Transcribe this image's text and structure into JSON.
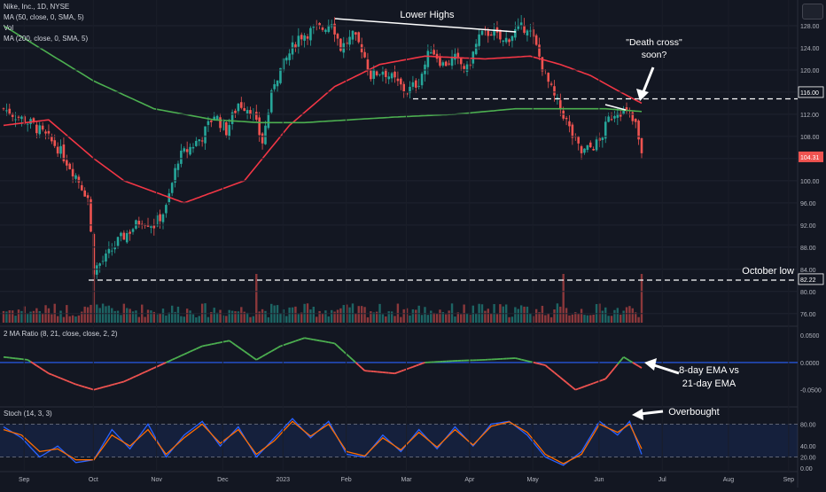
{
  "header": {
    "symbol_line": "Nike, Inc., 1D, NYSE",
    "ma50_label": "MA (50, close, 0, SMA, 5)",
    "vol_label": "Vol",
    "ma200_label": "MA (200, close, 0, SMA, 5)"
  },
  "panes": {
    "ratio_label": "2 MA Ratio (8, 21, close, close, 2, 2)",
    "stoch_label": "Stoch (14, 3, 3)"
  },
  "colors": {
    "background": "#131722",
    "up": "#26a69a",
    "down": "#ef5350",
    "ma50": "#f23645",
    "ma200": "#4caf50",
    "ratio_line": "#2962ff",
    "stoch_k": "#2962ff",
    "stoch_d": "#ff6d00"
  },
  "annotations": {
    "lower_highs": "Lower Highs",
    "death_cross": [
      "\"Death cross\"",
      "soon?"
    ],
    "october_low": "October low",
    "ema_note": [
      "8-day EMA vs",
      "21-day EMA"
    ],
    "overbought": "Overbought"
  },
  "chart_data": [
    {
      "type": "candlestick",
      "title": "Nike, Inc., 1D, NYSE",
      "x_tick_labels": [
        "Sep",
        "Oct",
        "Nov",
        "Dec",
        "2023",
        "Feb",
        "Mar",
        "Apr",
        "May",
        "Jun",
        "Jul",
        "Aug",
        "Sep"
      ],
      "y_tick_labels": [
        "128.00",
        "124.00",
        "120.00",
        "116.00",
        "112.00",
        "108.00",
        "104.00",
        "100.00",
        "96.00",
        "92.00",
        "88.00",
        "84.00",
        "80.00",
        "76.00"
      ],
      "ylim": [
        75,
        132
      ],
      "last_price": "104.31",
      "level_labels": [
        "116.00",
        "82.22"
      ],
      "close_anchors": [
        {
          "x": 0,
          "y": 113
        },
        {
          "x": 10,
          "y": 110
        },
        {
          "x": 18,
          "y": 106
        },
        {
          "x": 24,
          "y": 101
        },
        {
          "x": 28,
          "y": 97
        },
        {
          "x": 30,
          "y": 84
        },
        {
          "x": 34,
          "y": 86
        },
        {
          "x": 38,
          "y": 89
        },
        {
          "x": 42,
          "y": 91
        },
        {
          "x": 46,
          "y": 93
        },
        {
          "x": 50,
          "y": 92
        },
        {
          "x": 54,
          "y": 95
        },
        {
          "x": 58,
          "y": 104
        },
        {
          "x": 62,
          "y": 106
        },
        {
          "x": 66,
          "y": 108
        },
        {
          "x": 70,
          "y": 112
        },
        {
          "x": 74,
          "y": 109
        },
        {
          "x": 78,
          "y": 114
        },
        {
          "x": 82,
          "y": 113
        },
        {
          "x": 86,
          "y": 107
        },
        {
          "x": 90,
          "y": 118
        },
        {
          "x": 94,
          "y": 122
        },
        {
          "x": 98,
          "y": 126
        },
        {
          "x": 102,
          "y": 127
        },
        {
          "x": 106,
          "y": 127.5
        },
        {
          "x": 109,
          "y": 129
        },
        {
          "x": 112,
          "y": 124
        },
        {
          "x": 116,
          "y": 126
        },
        {
          "x": 119,
          "y": 124
        },
        {
          "x": 122,
          "y": 119
        },
        {
          "x": 126,
          "y": 120
        },
        {
          "x": 130,
          "y": 118
        },
        {
          "x": 134,
          "y": 116
        },
        {
          "x": 138,
          "y": 118
        },
        {
          "x": 142,
          "y": 124
        },
        {
          "x": 146,
          "y": 121
        },
        {
          "x": 150,
          "y": 122
        },
        {
          "x": 154,
          "y": 120
        },
        {
          "x": 158,
          "y": 126
        },
        {
          "x": 162,
          "y": 127
        },
        {
          "x": 166,
          "y": 125
        },
        {
          "x": 170,
          "y": 127
        },
        {
          "x": 174,
          "y": 128
        },
        {
          "x": 177,
          "y": 124
        },
        {
          "x": 180,
          "y": 119
        },
        {
          "x": 183,
          "y": 115
        },
        {
          "x": 186,
          "y": 112
        },
        {
          "x": 189,
          "y": 108
        },
        {
          "x": 192,
          "y": 105
        },
        {
          "x": 195,
          "y": 106
        },
        {
          "x": 198,
          "y": 107
        },
        {
          "x": 201,
          "y": 111
        },
        {
          "x": 204,
          "y": 113
        },
        {
          "x": 207,
          "y": 112
        },
        {
          "x": 210,
          "y": 110
        },
        {
          "x": 212,
          "y": 104.31
        }
      ],
      "series": [
        {
          "name": "MA (50, close, 0, SMA, 5)",
          "x": [
            0,
            15,
            30,
            40,
            60,
            80,
            95,
            110,
            125,
            140,
            160,
            175,
            185,
            195,
            205,
            212
          ],
          "values": [
            110,
            111,
            104,
            100,
            96,
            100,
            110,
            117,
            121,
            122.5,
            122,
            122.5,
            121,
            119,
            116,
            114
          ]
        },
        {
          "name": "MA (200, close, 0, SMA, 5)",
          "x": [
            0,
            15,
            30,
            50,
            70,
            85,
            100,
            115,
            130,
            150,
            170,
            185,
            200,
            212
          ],
          "values": [
            128,
            123,
            118,
            113,
            111,
            110.5,
            110.5,
            111,
            111.5,
            112,
            113,
            113,
            113,
            112.5
          ]
        }
      ],
      "volume": {
        "peak_x": [
          30,
          84,
          186,
          212
        ]
      }
    },
    {
      "type": "line",
      "title": "2 MA Ratio (8, 21, close, close, 2, 2)",
      "y_tick_labels": [
        "0.0500",
        "0.0000",
        "-0.0500"
      ],
      "ylim": [
        -0.07,
        0.06
      ],
      "x": [
        0,
        8,
        15,
        24,
        30,
        40,
        50,
        58,
        66,
        75,
        84,
        92,
        100,
        110,
        120,
        130,
        140,
        150,
        160,
        170,
        180,
        190,
        200,
        206,
        212
      ],
      "values": [
        0.01,
        0.005,
        -0.02,
        -0.04,
        -0.05,
        -0.035,
        -0.01,
        0.01,
        0.03,
        0.04,
        0.005,
        0.03,
        0.045,
        0.035,
        -0.015,
        -0.02,
        0.0,
        0.003,
        0.005,
        0.008,
        -0.005,
        -0.05,
        -0.03,
        0.01,
        -0.01
      ]
    },
    {
      "type": "line",
      "title": "Stoch (14, 3, 3)",
      "y_tick_labels": [
        "80.00",
        "40.00",
        "20.00",
        "0.00"
      ],
      "ylim": [
        0,
        100
      ],
      "bands": [
        20,
        80
      ],
      "x": [
        0,
        6,
        12,
        18,
        24,
        30,
        36,
        42,
        48,
        54,
        60,
        66,
        72,
        78,
        84,
        90,
        96,
        102,
        108,
        114,
        120,
        126,
        132,
        138,
        144,
        150,
        156,
        162,
        168,
        174,
        180,
        186,
        192,
        198,
        204,
        208,
        212
      ],
      "series": [
        {
          "name": "K",
          "values": [
            75,
            55,
            20,
            40,
            10,
            15,
            70,
            35,
            80,
            20,
            60,
            85,
            40,
            75,
            20,
            55,
            90,
            55,
            85,
            25,
            20,
            60,
            30,
            70,
            35,
            75,
            40,
            80,
            85,
            60,
            20,
            5,
            30,
            85,
            60,
            85,
            25
          ]
        },
        {
          "name": "D",
          "values": [
            70,
            60,
            30,
            35,
            15,
            15,
            60,
            40,
            70,
            25,
            55,
            80,
            45,
            70,
            25,
            50,
            85,
            58,
            80,
            30,
            22,
            55,
            33,
            65,
            38,
            70,
            42,
            76,
            84,
            65,
            25,
            8,
            25,
            80,
            65,
            80,
            35
          ]
        }
      ]
    }
  ]
}
